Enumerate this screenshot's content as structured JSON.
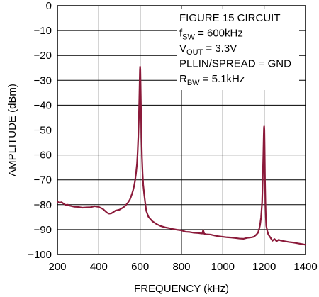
{
  "chart_data": {
    "type": "line",
    "xlabel": "FREQUENCY (kHz)",
    "ylabel": "AMPLITUDE (dBm)",
    "xlim": [
      200,
      1400
    ],
    "ylim": [
      -100,
      0
    ],
    "x_ticks": [
      200,
      400,
      600,
      800,
      1000,
      1200,
      1400
    ],
    "x_tick_labels": [
      "200",
      "400",
      "600",
      "800",
      "1000",
      "1200",
      "1400"
    ],
    "y_ticks": [
      0,
      -10,
      -20,
      -30,
      -40,
      -50,
      -60,
      -70,
      -80,
      -90,
      -100
    ],
    "y_tick_labels": [
      "0",
      "−10",
      "−20",
      "−30",
      "−40",
      "−50",
      "−60",
      "−70",
      "−80",
      "−90",
      "−100"
    ],
    "grid": true,
    "line_color": "#8b1a3a",
    "annotations": {
      "line1": "FIGURE 15 CIRCUIT",
      "line2": {
        "main": "f",
        "sub": "SW",
        "rest": " = 600kHz"
      },
      "line3": {
        "main": "V",
        "sub": "OUT",
        "rest": " = 3.3V"
      },
      "line4": "PLLIN/SPREAD = GND",
      "line5": {
        "main": "R",
        "sub": "BW",
        "rest": " = 5.1kHz"
      }
    },
    "series": [
      {
        "x": [
          200,
          210,
          220,
          230,
          240,
          250,
          260,
          280,
          300,
          320,
          340,
          360,
          380,
          400,
          420,
          440,
          450,
          460,
          470,
          480,
          500,
          510,
          520,
          530,
          540,
          550,
          555,
          560,
          565,
          570,
          575,
          580,
          585,
          588,
          591,
          594,
          596,
          598,
          599,
          600,
          601,
          602,
          604,
          606,
          609,
          612,
          615,
          620,
          625,
          630,
          640,
          650,
          660,
          680,
          700,
          720,
          740,
          760,
          780,
          800,
          820,
          840,
          860,
          880,
          900,
          905,
          910,
          915,
          920,
          940,
          960,
          980,
          1000,
          1020,
          1040,
          1060,
          1080,
          1100,
          1120,
          1140,
          1150,
          1160,
          1170,
          1175,
          1180,
          1185,
          1190,
          1193,
          1196,
          1198,
          1199,
          1200,
          1201,
          1202,
          1204,
          1206,
          1208,
          1210,
          1215,
          1220,
          1230,
          1240,
          1250,
          1260,
          1270,
          1280,
          1300,
          1320,
          1340,
          1360,
          1380,
          1400
        ],
        "y": [
          -78.8,
          -79.2,
          -79,
          -79.6,
          -80.1,
          -80,
          -80.4,
          -80.8,
          -80.9,
          -81.2,
          -81.1,
          -81,
          -80.6,
          -80.9,
          -81.7,
          -83.2,
          -83.6,
          -83.5,
          -83,
          -82.4,
          -82,
          -81.5,
          -81,
          -80.3,
          -79.3,
          -78,
          -77,
          -75.8,
          -74.5,
          -72.8,
          -70.6,
          -67.5,
          -63.5,
          -59,
          -53,
          -45,
          -38,
          -30,
          -26,
          -24.5,
          -25.5,
          -30,
          -40,
          -51,
          -61,
          -67.5,
          -72,
          -76,
          -79.5,
          -82.5,
          -84.8,
          -85.8,
          -86.7,
          -87.8,
          -88.6,
          -89.1,
          -89.4,
          -89.8,
          -90.1,
          -90.3,
          -90.9,
          -91,
          -91.3,
          -91.4,
          -91.6,
          -90.2,
          -91.7,
          -91.8,
          -91.9,
          -92,
          -92.4,
          -92.7,
          -92.9,
          -93.1,
          -93.2,
          -93.4,
          -93.6,
          -93.7,
          -93.3,
          -93.1,
          -92.9,
          -92.2,
          -91.3,
          -90,
          -88.2,
          -85,
          -79,
          -70,
          -60,
          -52,
          -49,
          -48.5,
          -50,
          -56,
          -70,
          -79,
          -85,
          -88.5,
          -90.5,
          -92,
          -93.2,
          -94.5,
          -93.8,
          -94.7,
          -94.1,
          -94.4,
          -94.7,
          -95,
          -95.2,
          -95.5,
          -95.8,
          -96.1
        ]
      }
    ]
  }
}
